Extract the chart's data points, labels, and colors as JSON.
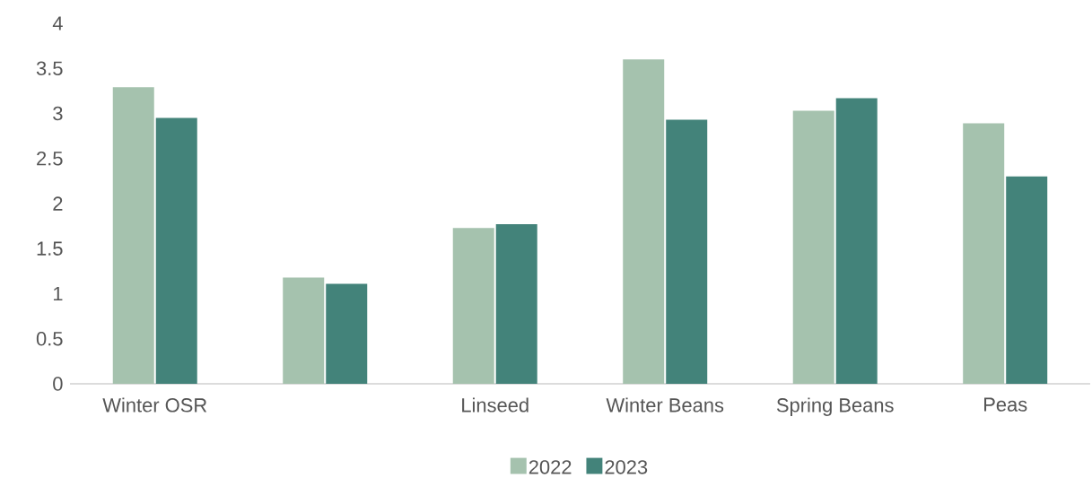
{
  "chart_data": {
    "type": "bar",
    "categories": [
      "Winter OSR",
      null,
      "Linseed",
      "Winter Beans",
      "Spring Beans",
      "Peas"
    ],
    "series": [
      {
        "name": "2022",
        "color": "#a5c2ae",
        "values": [
          3.29,
          1.18,
          1.73,
          3.6,
          3.03,
          2.89
        ]
      },
      {
        "name": "2023",
        "color": "#43837a",
        "values": [
          2.95,
          1.11,
          1.77,
          2.93,
          3.17,
          2.3
        ]
      }
    ],
    "ylim": [
      0,
      4
    ],
    "yticks": [
      0,
      0.5,
      1,
      1.5,
      2,
      2.5,
      3,
      3.5,
      4
    ],
    "grid": false,
    "legend": "bottom"
  }
}
